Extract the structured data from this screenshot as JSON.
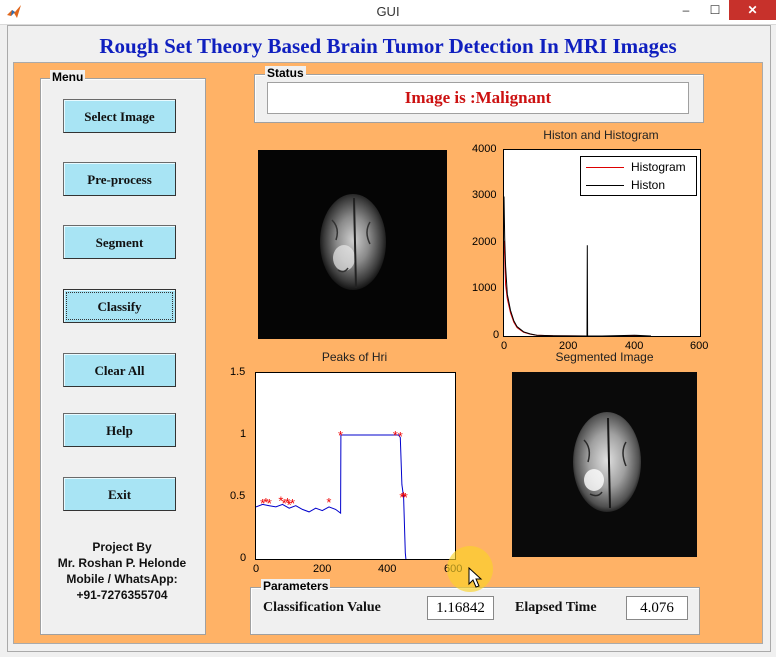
{
  "window": {
    "title": "GUI",
    "minimize": "–",
    "maximize": "☐",
    "close": "✕"
  },
  "app_title": "Rough Set Theory Based Brain Tumor Detection In MRI Images",
  "menu": {
    "title": "Menu",
    "buttons": [
      "Select Image",
      "Pre-process",
      "Segment",
      "Classify",
      "Clear All",
      "Help",
      "Exit"
    ]
  },
  "credit": {
    "line1": "Project By",
    "line2": "Mr. Roshan P. Helonde",
    "line3": "Mobile / WhatsApp:",
    "line4": "+91-7276355704"
  },
  "status": {
    "title": "Status",
    "text": "Image is :Malignant"
  },
  "plots": {
    "histogram_title": "Histon and Histogram",
    "histogram_legend": [
      "Histogram",
      "Histon"
    ],
    "hist_y_ticks": [
      "4000",
      "3000",
      "2000",
      "1000",
      "0"
    ],
    "hist_x_ticks": [
      "0",
      "200",
      "400",
      "600"
    ],
    "peaks_title": "Peaks of Hri",
    "peaks_y_ticks": [
      "1.5",
      "1",
      "0.5",
      "0"
    ],
    "peaks_x_ticks": [
      "0",
      "200",
      "400",
      "600"
    ],
    "segmented_title": "Segmented Image"
  },
  "parameters": {
    "title": "Parameters",
    "classification_label": "Classification Value",
    "classification_value": "1.16842",
    "elapsed_label": "Elapsed Time",
    "elapsed_value": "4.076"
  },
  "colors": {
    "title_blue": "#0f1fbf",
    "status_red": "#cc1111",
    "background_orange": "#ffb266",
    "button_blue": "#a8e4f4"
  },
  "chart_data": [
    {
      "type": "line",
      "title": "Histon and Histogram",
      "xlim": [
        0,
        600
      ],
      "ylim": [
        0,
        4000
      ],
      "series": [
        {
          "name": "Histogram",
          "color": "#dd0000",
          "x": [
            0,
            2,
            5,
            10,
            20,
            30,
            40,
            60,
            80,
            100,
            150,
            200,
            255,
            300,
            400,
            450
          ],
          "values": [
            2050,
            1700,
            1100,
            800,
            500,
            300,
            180,
            80,
            40,
            15,
            5,
            2,
            0,
            0,
            0,
            0
          ]
        },
        {
          "name": "Histon",
          "color": "#000000",
          "x": [
            0,
            2,
            5,
            10,
            20,
            30,
            40,
            60,
            80,
            100,
            150,
            200,
            254,
            255,
            256,
            300,
            400,
            450
          ],
          "values": [
            3000,
            2100,
            1500,
            900,
            550,
            330,
            200,
            90,
            45,
            18,
            6,
            2,
            0,
            1950,
            0,
            0,
            15,
            0
          ]
        }
      ]
    },
    {
      "type": "line",
      "title": "Peaks of Hri",
      "xlim": [
        0,
        600
      ],
      "ylim": [
        0,
        1.5
      ],
      "series": [
        {
          "name": "Hri",
          "color": "#0000cc",
          "x": [
            0,
            20,
            40,
            60,
            80,
            100,
            120,
            140,
            160,
            180,
            200,
            220,
            240,
            255,
            256,
            300,
            350,
            400,
            430,
            435,
            440,
            445,
            450,
            452
          ],
          "values": [
            0.42,
            0.44,
            0.43,
            0.42,
            0.44,
            0.41,
            0.43,
            0.4,
            0.38,
            0.41,
            0.39,
            0.42,
            0.4,
            0.37,
            1.0,
            1.0,
            1.0,
            1.0,
            1.0,
            0.98,
            0.6,
            0.5,
            0.05,
            0
          ]
        },
        {
          "name": "Peaks",
          "color": "#ee0000",
          "marker": "star",
          "x": [
            20,
            30,
            40,
            75,
            85,
            95,
            100,
            110,
            220,
            255,
            420,
            435,
            440,
            445,
            450
          ],
          "values": [
            0.45,
            0.46,
            0.45,
            0.47,
            0.45,
            0.46,
            0.44,
            0.45,
            0.46,
            1.0,
            1.0,
            0.99,
            0.5,
            0.51,
            0.5
          ]
        }
      ]
    }
  ]
}
